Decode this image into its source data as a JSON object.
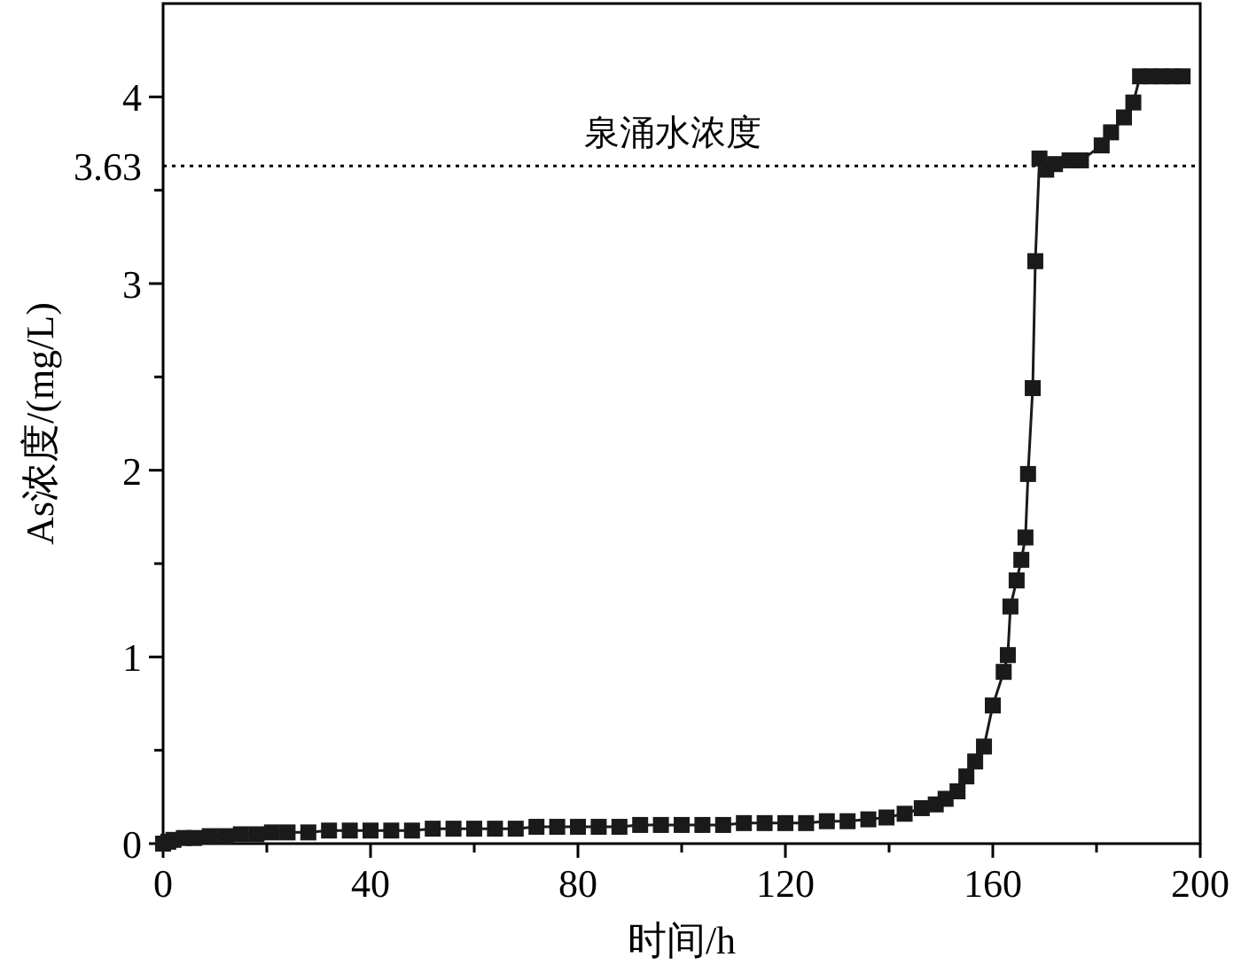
{
  "chart_data": {
    "type": "line",
    "xlabel": "时间/h",
    "ylabel": "As浓度/(mg/L)",
    "marker": "square",
    "line_style": "solid",
    "grid": false,
    "xlim": [
      0,
      200
    ],
    "ylim": [
      0,
      4.5
    ],
    "xticks": [
      0,
      {
        "value": 20,
        "label": null
      },
      40,
      {
        "value": 60,
        "label": null
      },
      80,
      {
        "value": 100,
        "label": null
      },
      120,
      {
        "value": 140,
        "label": null
      },
      160,
      {
        "value": 180,
        "label": null
      },
      200
    ],
    "yticks": [
      0,
      {
        "value": 0.5,
        "label": null
      },
      1,
      {
        "value": 1.5,
        "label": null
      },
      2,
      {
        "value": 2.5,
        "label": null
      },
      3,
      {
        "value": 3.5,
        "label": null
      },
      3.63,
      4
    ],
    "ref_lines": [
      {
        "axis": "y",
        "value": 3.63,
        "label": "泉涌水浓度",
        "color": "#000000",
        "line_style": "dotted"
      }
    ],
    "series": [
      {
        "color": "#1a1a1a",
        "x": [
          0,
          1,
          2,
          4,
          6,
          9,
          12,
          15,
          18,
          21,
          24,
          28,
          32,
          36,
          40,
          44,
          48,
          52,
          56,
          60,
          64,
          68,
          72,
          76,
          80,
          84,
          88,
          92,
          96,
          100,
          104,
          108,
          112,
          116,
          120,
          124,
          128,
          132,
          136,
          139.5,
          143,
          146.3,
          149,
          150.9,
          153.2,
          154.9,
          156.6,
          158.3,
          160,
          162.1,
          162.9,
          163.4,
          164.6,
          165.5,
          166.3,
          166.8,
          167.7,
          168.2,
          169,
          170.3,
          172,
          174.8,
          177,
          181,
          182.8,
          185.3,
          187.1,
          188.4,
          190.5,
          192.5,
          194.5,
          196.6
        ],
        "values": [
          0.0,
          0.01,
          0.02,
          0.03,
          0.03,
          0.04,
          0.04,
          0.05,
          0.05,
          0.06,
          0.06,
          0.06,
          0.07,
          0.07,
          0.07,
          0.07,
          0.07,
          0.08,
          0.08,
          0.08,
          0.08,
          0.08,
          0.09,
          0.09,
          0.09,
          0.09,
          0.09,
          0.1,
          0.1,
          0.1,
          0.1,
          0.1,
          0.11,
          0.11,
          0.11,
          0.11,
          0.12,
          0.12,
          0.13,
          0.14,
          0.16,
          0.19,
          0.21,
          0.24,
          0.28,
          0.36,
          0.44,
          0.52,
          0.74,
          0.92,
          1.01,
          1.27,
          1.41,
          1.52,
          1.64,
          1.98,
          2.44,
          3.12,
          3.67,
          3.61,
          3.64,
          3.66,
          3.66,
          3.74,
          3.81,
          3.89,
          3.97,
          4.11,
          4.11,
          4.11,
          4.11,
          4.11
        ]
      }
    ]
  }
}
